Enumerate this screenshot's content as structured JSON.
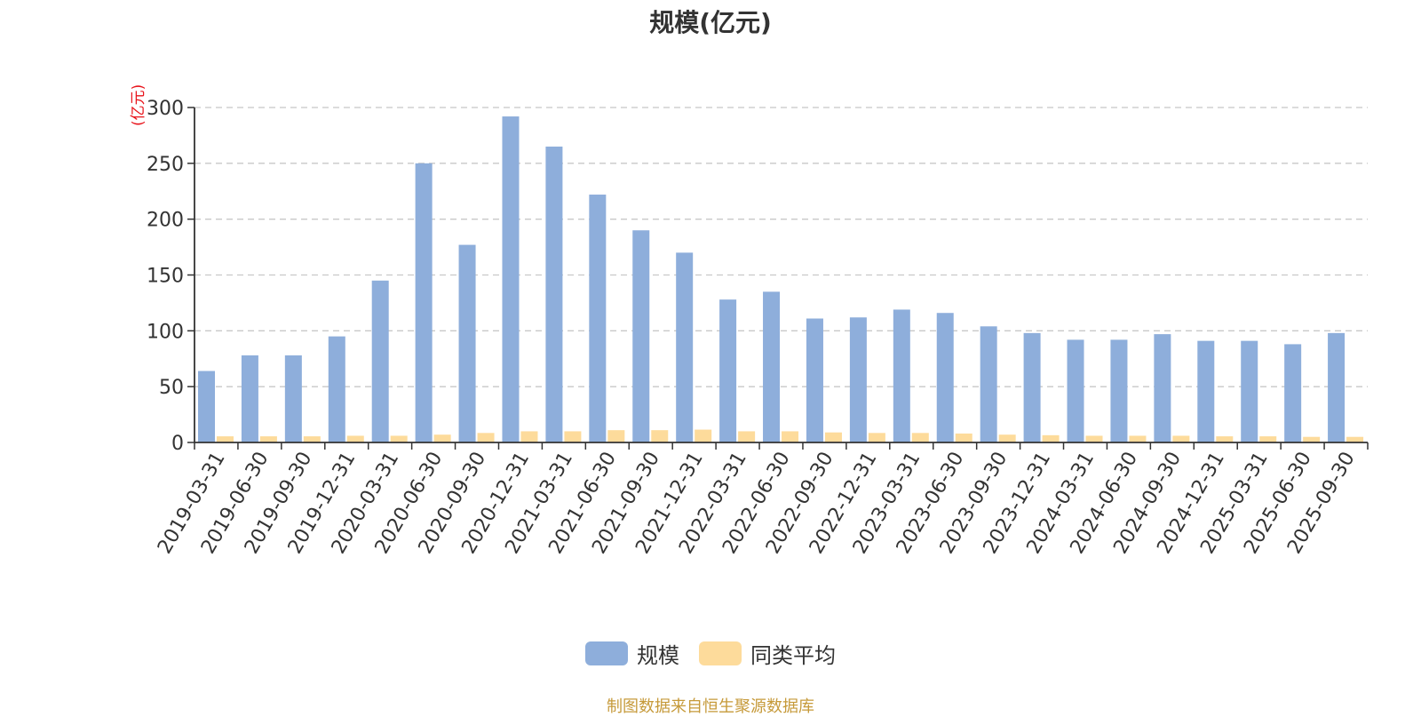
{
  "chart_data": {
    "type": "bar",
    "title": "规模(亿元)",
    "ylabel": "(亿元)",
    "xlabel": "",
    "ylim": [
      0,
      300
    ],
    "yticks": [
      0,
      50,
      100,
      150,
      200,
      250,
      300
    ],
    "grid": true,
    "legend_position": "bottom",
    "categories": [
      "2019-03-31",
      "2019-06-30",
      "2019-09-30",
      "2019-12-31",
      "2020-03-31",
      "2020-06-30",
      "2020-09-30",
      "2020-12-31",
      "2021-03-31",
      "2021-06-30",
      "2021-09-30",
      "2021-12-31",
      "2022-03-31",
      "2022-06-30",
      "2022-09-30",
      "2022-12-31",
      "2023-03-31",
      "2023-06-30",
      "2023-09-30",
      "2023-12-31",
      "2024-03-31",
      "2024-06-30",
      "2024-09-30",
      "2024-12-31",
      "2025-03-31",
      "2025-06-30",
      "2025-09-30"
    ],
    "series": [
      {
        "name": "规模",
        "color": "#8eaedb",
        "values": [
          64,
          78,
          78,
          95,
          145,
          250,
          177,
          292,
          265,
          222,
          190,
          170,
          128,
          135,
          111,
          112,
          119,
          116,
          104,
          98,
          92,
          92,
          97,
          91,
          91,
          88,
          98
        ]
      },
      {
        "name": "同类平均",
        "color": "#fddb9b",
        "values": [
          5.5,
          5.5,
          5.5,
          6,
          6,
          7,
          8.5,
          10,
          10,
          11,
          11,
          11.5,
          10,
          10,
          9,
          8.5,
          8.5,
          8,
          7,
          6.5,
          6,
          6,
          6,
          5.5,
          5.5,
          5,
          5
        ]
      }
    ]
  },
  "source_text": "制图数据来自恒生聚源数据库"
}
